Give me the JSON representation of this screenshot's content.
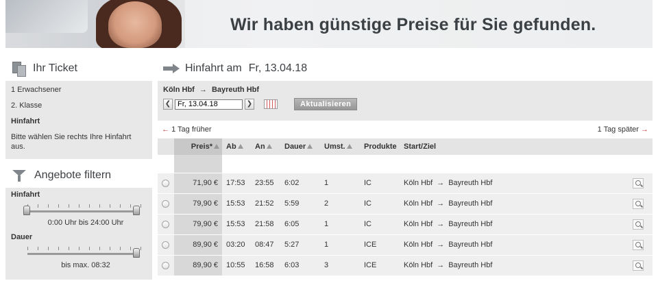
{
  "banner": {
    "slogan": "Wir haben günstige Preise für Sie gefunden."
  },
  "ticket": {
    "title": "Ihr Ticket",
    "passengers": "1 Erwachsener",
    "class": "2. Klasse",
    "journey_label": "Hinfahrt",
    "hint": "Bitte wählen Sie rechts Ihre Hinfahrt aus."
  },
  "filter": {
    "title": "Angebote filtern",
    "departure_label": "Hinfahrt",
    "departure_range": "0:00 Uhr bis 24:00 Uhr",
    "duration_label": "Dauer",
    "duration_max": "bis max. 08:32"
  },
  "journey": {
    "title": "Hinfahrt am",
    "date": "Fr, 13.04.18",
    "from": "Köln Hbf",
    "to": "Bayreuth Hbf",
    "date_input": "Fr, 13.04.18",
    "update_label": "Aktualisieren",
    "earlier": "1 Tag früher",
    "later": "1 Tag später"
  },
  "table": {
    "headers": {
      "price": "Preis*",
      "dep": "Ab",
      "arr": "An",
      "duration": "Dauer",
      "changes": "Umst.",
      "products": "Produkte",
      "route": "Start/Ziel"
    },
    "rows": [
      {
        "price": "71,90 €",
        "dep": "17:53",
        "arr": "23:55",
        "duration": "6:02",
        "changes": "1",
        "products": "IC",
        "from": "Köln Hbf",
        "to": "Bayreuth Hbf"
      },
      {
        "price": "79,90 €",
        "dep": "15:53",
        "arr": "21:52",
        "duration": "5:59",
        "changes": "2",
        "products": "IC",
        "from": "Köln Hbf",
        "to": "Bayreuth Hbf"
      },
      {
        "price": "79,90 €",
        "dep": "15:53",
        "arr": "21:58",
        "duration": "6:05",
        "changes": "1",
        "products": "IC",
        "from": "Köln Hbf",
        "to": "Bayreuth Hbf"
      },
      {
        "price": "89,90 €",
        "dep": "03:20",
        "arr": "08:47",
        "duration": "5:27",
        "changes": "1",
        "products": "ICE",
        "from": "Köln Hbf",
        "to": "Bayreuth Hbf"
      },
      {
        "price": "89,90 €",
        "dep": "10:55",
        "arr": "16:58",
        "duration": "6:03",
        "changes": "3",
        "products": "ICE",
        "from": "Köln Hbf",
        "to": "Bayreuth Hbf"
      }
    ]
  }
}
